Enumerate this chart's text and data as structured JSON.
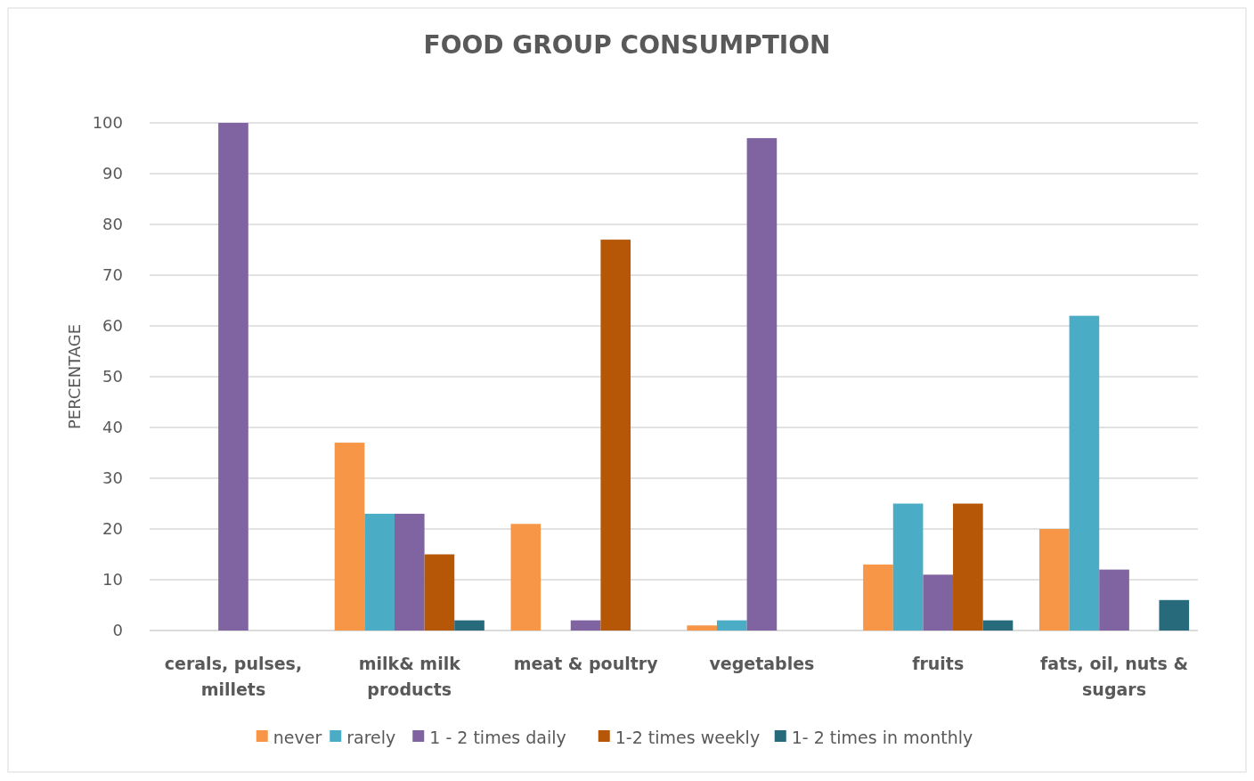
{
  "chart_data": {
    "type": "bar",
    "title": "FOOD GROUP CONSUMPTION",
    "ylabel": "PERCENTAGE",
    "categories": [
      "cerals, pulses, millets",
      "milk& milk products",
      "meat & poultry",
      "vegetables",
      "fruits",
      "fats, oil, nuts & sugars"
    ],
    "series": [
      {
        "name": "never",
        "color": "#f79646",
        "values": [
          null,
          37,
          21,
          1,
          13,
          20
        ]
      },
      {
        "name": "rarely",
        "color": "#4bacc6",
        "values": [
          null,
          23,
          null,
          2,
          25,
          62
        ]
      },
      {
        "name": "1 - 2 times daily",
        "color": "#8064a2",
        "values": [
          100,
          23,
          2,
          97,
          11,
          12
        ]
      },
      {
        "name": "1-2 times weekly",
        "color": "#b65708",
        "values": [
          null,
          15,
          77,
          null,
          25,
          null
        ]
      },
      {
        "name": "1- 2 times in monthly",
        "color": "#276a7c",
        "values": [
          null,
          2,
          null,
          null,
          2,
          6
        ]
      }
    ],
    "ylim": [
      0,
      100
    ],
    "yticks": [
      0,
      10,
      20,
      30,
      40,
      50,
      60,
      70,
      80,
      90,
      100
    ],
    "grid": "y",
    "legend": "bottom"
  }
}
